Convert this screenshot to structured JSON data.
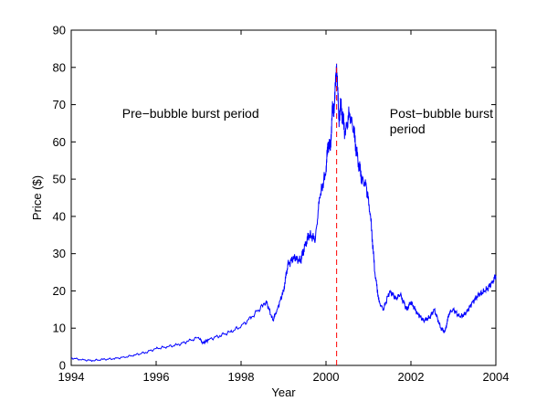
{
  "chart_data": {
    "type": "line",
    "title": "",
    "xlabel": "Year",
    "ylabel": "Price ($)",
    "xlim": [
      1994,
      2004
    ],
    "ylim": [
      0,
      90
    ],
    "xticks": [
      1994,
      1996,
      1998,
      2000,
      2002,
      2004
    ],
    "yticks": [
      0,
      10,
      20,
      30,
      40,
      50,
      60,
      70,
      80,
      90
    ],
    "grid": false,
    "series": [
      {
        "color": "#0000ff",
        "x": [
          1994.0,
          1994.25,
          1994.5,
          1994.75,
          1995.0,
          1995.25,
          1995.5,
          1995.75,
          1996.0,
          1996.25,
          1996.5,
          1996.75,
          1997.0,
          1997.1,
          1997.25,
          1997.5,
          1997.75,
          1998.0,
          1998.25,
          1998.5,
          1998.6,
          1998.75,
          1998.85,
          1999.0,
          1999.1,
          1999.25,
          1999.4,
          1999.5,
          1999.6,
          1999.75,
          1999.85,
          2000.0,
          2000.05,
          2000.1,
          2000.15,
          2000.2,
          2000.25,
          2000.3,
          2000.35,
          2000.45,
          2000.55,
          2000.65,
          2000.75,
          2000.85,
          2000.95,
          2001.05,
          2001.15,
          2001.25,
          2001.35,
          2001.5,
          2001.65,
          2001.75,
          2001.9,
          2002.0,
          2002.15,
          2002.3,
          2002.45,
          2002.55,
          2002.7,
          2002.8,
          2002.9,
          2003.0,
          2003.15,
          2003.3,
          2003.45,
          2003.6,
          2003.75,
          2003.9,
          2004.0
        ],
        "y": [
          2.0,
          1.5,
          1.3,
          1.6,
          1.8,
          2.2,
          2.8,
          3.5,
          4.5,
          5.0,
          5.5,
          6.5,
          7.5,
          6.0,
          7.0,
          8.0,
          9.0,
          10.5,
          13.0,
          16.0,
          17.0,
          12.0,
          15.0,
          20.0,
          27.0,
          29.0,
          28.0,
          32.0,
          35.0,
          34.0,
          45.0,
          52.0,
          60.0,
          58.0,
          68.0,
          70.0,
          81.0,
          66.0,
          70.0,
          62.0,
          68.0,
          63.0,
          55.0,
          50.0,
          48.0,
          40.0,
          25.0,
          17.0,
          15.0,
          20.0,
          18.0,
          19.0,
          15.0,
          17.0,
          14.0,
          12.0,
          13.0,
          15.0,
          10.0,
          9.0,
          14.0,
          15.0,
          13.0,
          14.0,
          17.0,
          19.0,
          20.0,
          22.0,
          24.0
        ]
      }
    ],
    "vline": {
      "x": 2000.25,
      "color": "#ff0000",
      "style": "dashed",
      "ymax": 81
    },
    "annotations": [
      {
        "lines": [
          "Pre−bubble burst period"
        ],
        "x": 1995.2,
        "y": 66.5
      },
      {
        "lines": [
          "Post−bubble burst",
          "period"
        ],
        "x": 2001.5,
        "y": 66.5
      }
    ]
  }
}
